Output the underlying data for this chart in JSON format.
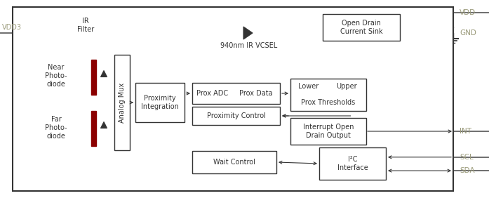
{
  "fig_width": 6.97,
  "fig_height": 2.82,
  "dpi": 100,
  "bg_color": "#ffffff",
  "text_color": "#333333",
  "label_color": "#9a9a7a",
  "red_color": "#8B0000",
  "vdd3_label": "VDD3",
  "vdd_label": "VDD",
  "gnd_label": "GND",
  "int_label": "INT",
  "scl_label": "SCL",
  "sda_label": "SDA",
  "ir_filter_label": "IR\nFilter",
  "near_label": "Near\nPhoto-\ndiode",
  "far_label": "Far\nPhoto-\ndiode",
  "analog_mux_label": "Analog Mux",
  "prox_int_label": "Proximity\nIntegration",
  "prox_adc_label": "Prox ADC",
  "prox_data_label": "Prox Data",
  "prox_ctrl_label": "Proximity Control",
  "lower_label": "Lower",
  "upper_label": "Upper",
  "prox_thresh_label": "Prox Thresholds",
  "open_drain_label": "Open Drain\nCurrent Sink",
  "interrupt_label": "Interrupt Open\nDrain Output",
  "i2c_label": "I²C\nInterface",
  "wait_ctrl_label": "Wait Control",
  "vcsel_label": "940nm IR VCSEL"
}
